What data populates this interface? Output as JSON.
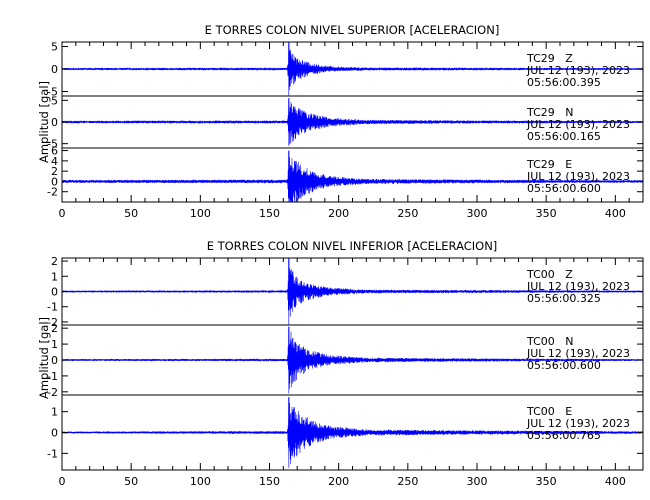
{
  "colors": {
    "trace": "#0000ff",
    "axis": "#000000",
    "background": "#ffffff"
  },
  "chart_data": [
    {
      "type": "line",
      "title": "E TORRES COLON NIVEL SUPERIOR [ACELERACION]",
      "ylabel": "Amplitud [gal]",
      "x_ticks": [
        0,
        50,
        100,
        150,
        200,
        250,
        300,
        350,
        400
      ],
      "xlim": [
        0,
        420
      ],
      "grid": false,
      "traces": [
        {
          "label": "TC29 Z",
          "date": "JUL 12 (193), 2023",
          "time": "05:56:00.395",
          "ylim": [
            -6,
            6
          ],
          "y_ticks": [
            -5,
            0,
            5
          ],
          "onset_s": 164,
          "peak_gal": 6.0,
          "envelope": [
            [
              0,
              0.25
            ],
            [
              163,
              0.3
            ],
            [
              164,
              6.0
            ],
            [
              166,
              4.5
            ],
            [
              170,
              2.5
            ],
            [
              180,
              1.3
            ],
            [
              195,
              0.6
            ],
            [
              220,
              0.35
            ],
            [
              300,
              0.3
            ],
            [
              420,
              0.2
            ]
          ]
        },
        {
          "label": "TC29 N",
          "date": "JUL 12 (193), 2023",
          "time": "05:56:00.165",
          "ylim": [
            -6,
            6
          ],
          "y_ticks": [
            -5,
            0,
            5
          ],
          "onset_s": 164,
          "peak_gal": 5.5,
          "envelope": [
            [
              0,
              0.3
            ],
            [
              163,
              0.35
            ],
            [
              164,
              5.5
            ],
            [
              167,
              4.5
            ],
            [
              172,
              3.2
            ],
            [
              180,
              2.0
            ],
            [
              195,
              1.0
            ],
            [
              220,
              0.5
            ],
            [
              300,
              0.35
            ],
            [
              420,
              0.25
            ]
          ]
        },
        {
          "label": "TC29 E",
          "date": "JUL 12 (193), 2023",
          "time": "05:56:00.600",
          "ylim": [
            -4,
            6.5
          ],
          "y_ticks": [
            -2,
            0,
            2,
            4,
            6
          ],
          "onset_s": 164,
          "peak_gal": 6.0,
          "envelope": [
            [
              0,
              0.3
            ],
            [
              163,
              0.35
            ],
            [
              164,
              6.0
            ],
            [
              167,
              5.0
            ],
            [
              172,
              3.5
            ],
            [
              182,
              2.0
            ],
            [
              195,
              1.0
            ],
            [
              220,
              0.5
            ],
            [
              300,
              0.35
            ],
            [
              420,
              0.25
            ]
          ]
        }
      ]
    },
    {
      "type": "line",
      "title": "E TORRES COLON NIVEL INFERIOR [ACELERACION]",
      "ylabel": "Amplitud [gal]",
      "x_ticks": [
        0,
        50,
        100,
        150,
        200,
        250,
        300,
        350,
        400
      ],
      "xlim": [
        0,
        420
      ],
      "grid": false,
      "traces": [
        {
          "label": "TC00 Z",
          "date": "JUL 12 (193), 2023",
          "time": "05:56:00.325",
          "ylim": [
            -2.2,
            2.2
          ],
          "y_ticks": [
            -2,
            -1,
            0,
            1,
            2
          ],
          "onset_s": 164,
          "peak_gal": 2.2,
          "envelope": [
            [
              0,
              0.06
            ],
            [
              163,
              0.08
            ],
            [
              164,
              2.2
            ],
            [
              166,
              1.5
            ],
            [
              170,
              0.9
            ],
            [
              180,
              0.5
            ],
            [
              195,
              0.25
            ],
            [
              220,
              0.12
            ],
            [
              300,
              0.1
            ],
            [
              420,
              0.06
            ]
          ]
        },
        {
          "label": "TC00 N",
          "date": "JUL 12 (193), 2023",
          "time": "05:56:00.600",
          "ylim": [
            -2.2,
            2.2
          ],
          "y_ticks": [
            -2,
            -1,
            0,
            1,
            2
          ],
          "onset_s": 164,
          "peak_gal": 2.1,
          "envelope": [
            [
              0,
              0.06
            ],
            [
              163,
              0.08
            ],
            [
              164,
              2.1
            ],
            [
              167,
              1.6
            ],
            [
              172,
              1.0
            ],
            [
              180,
              0.6
            ],
            [
              195,
              0.3
            ],
            [
              220,
              0.15
            ],
            [
              300,
              0.1
            ],
            [
              420,
              0.06
            ]
          ]
        },
        {
          "label": "TC00 E",
          "date": "JUL 12 (193), 2023",
          "time": "05:56:00.765",
          "ylim": [
            -1.8,
            1.8
          ],
          "y_ticks": [
            -1,
            0,
            1
          ],
          "onset_s": 164,
          "peak_gal": 1.7,
          "envelope": [
            [
              0,
              0.05
            ],
            [
              163,
              0.07
            ],
            [
              164,
              1.7
            ],
            [
              167,
              1.4
            ],
            [
              172,
              1.0
            ],
            [
              182,
              0.55
            ],
            [
              195,
              0.3
            ],
            [
              220,
              0.15
            ],
            [
              300,
              0.1
            ],
            [
              420,
              0.06
            ]
          ]
        }
      ]
    }
  ]
}
